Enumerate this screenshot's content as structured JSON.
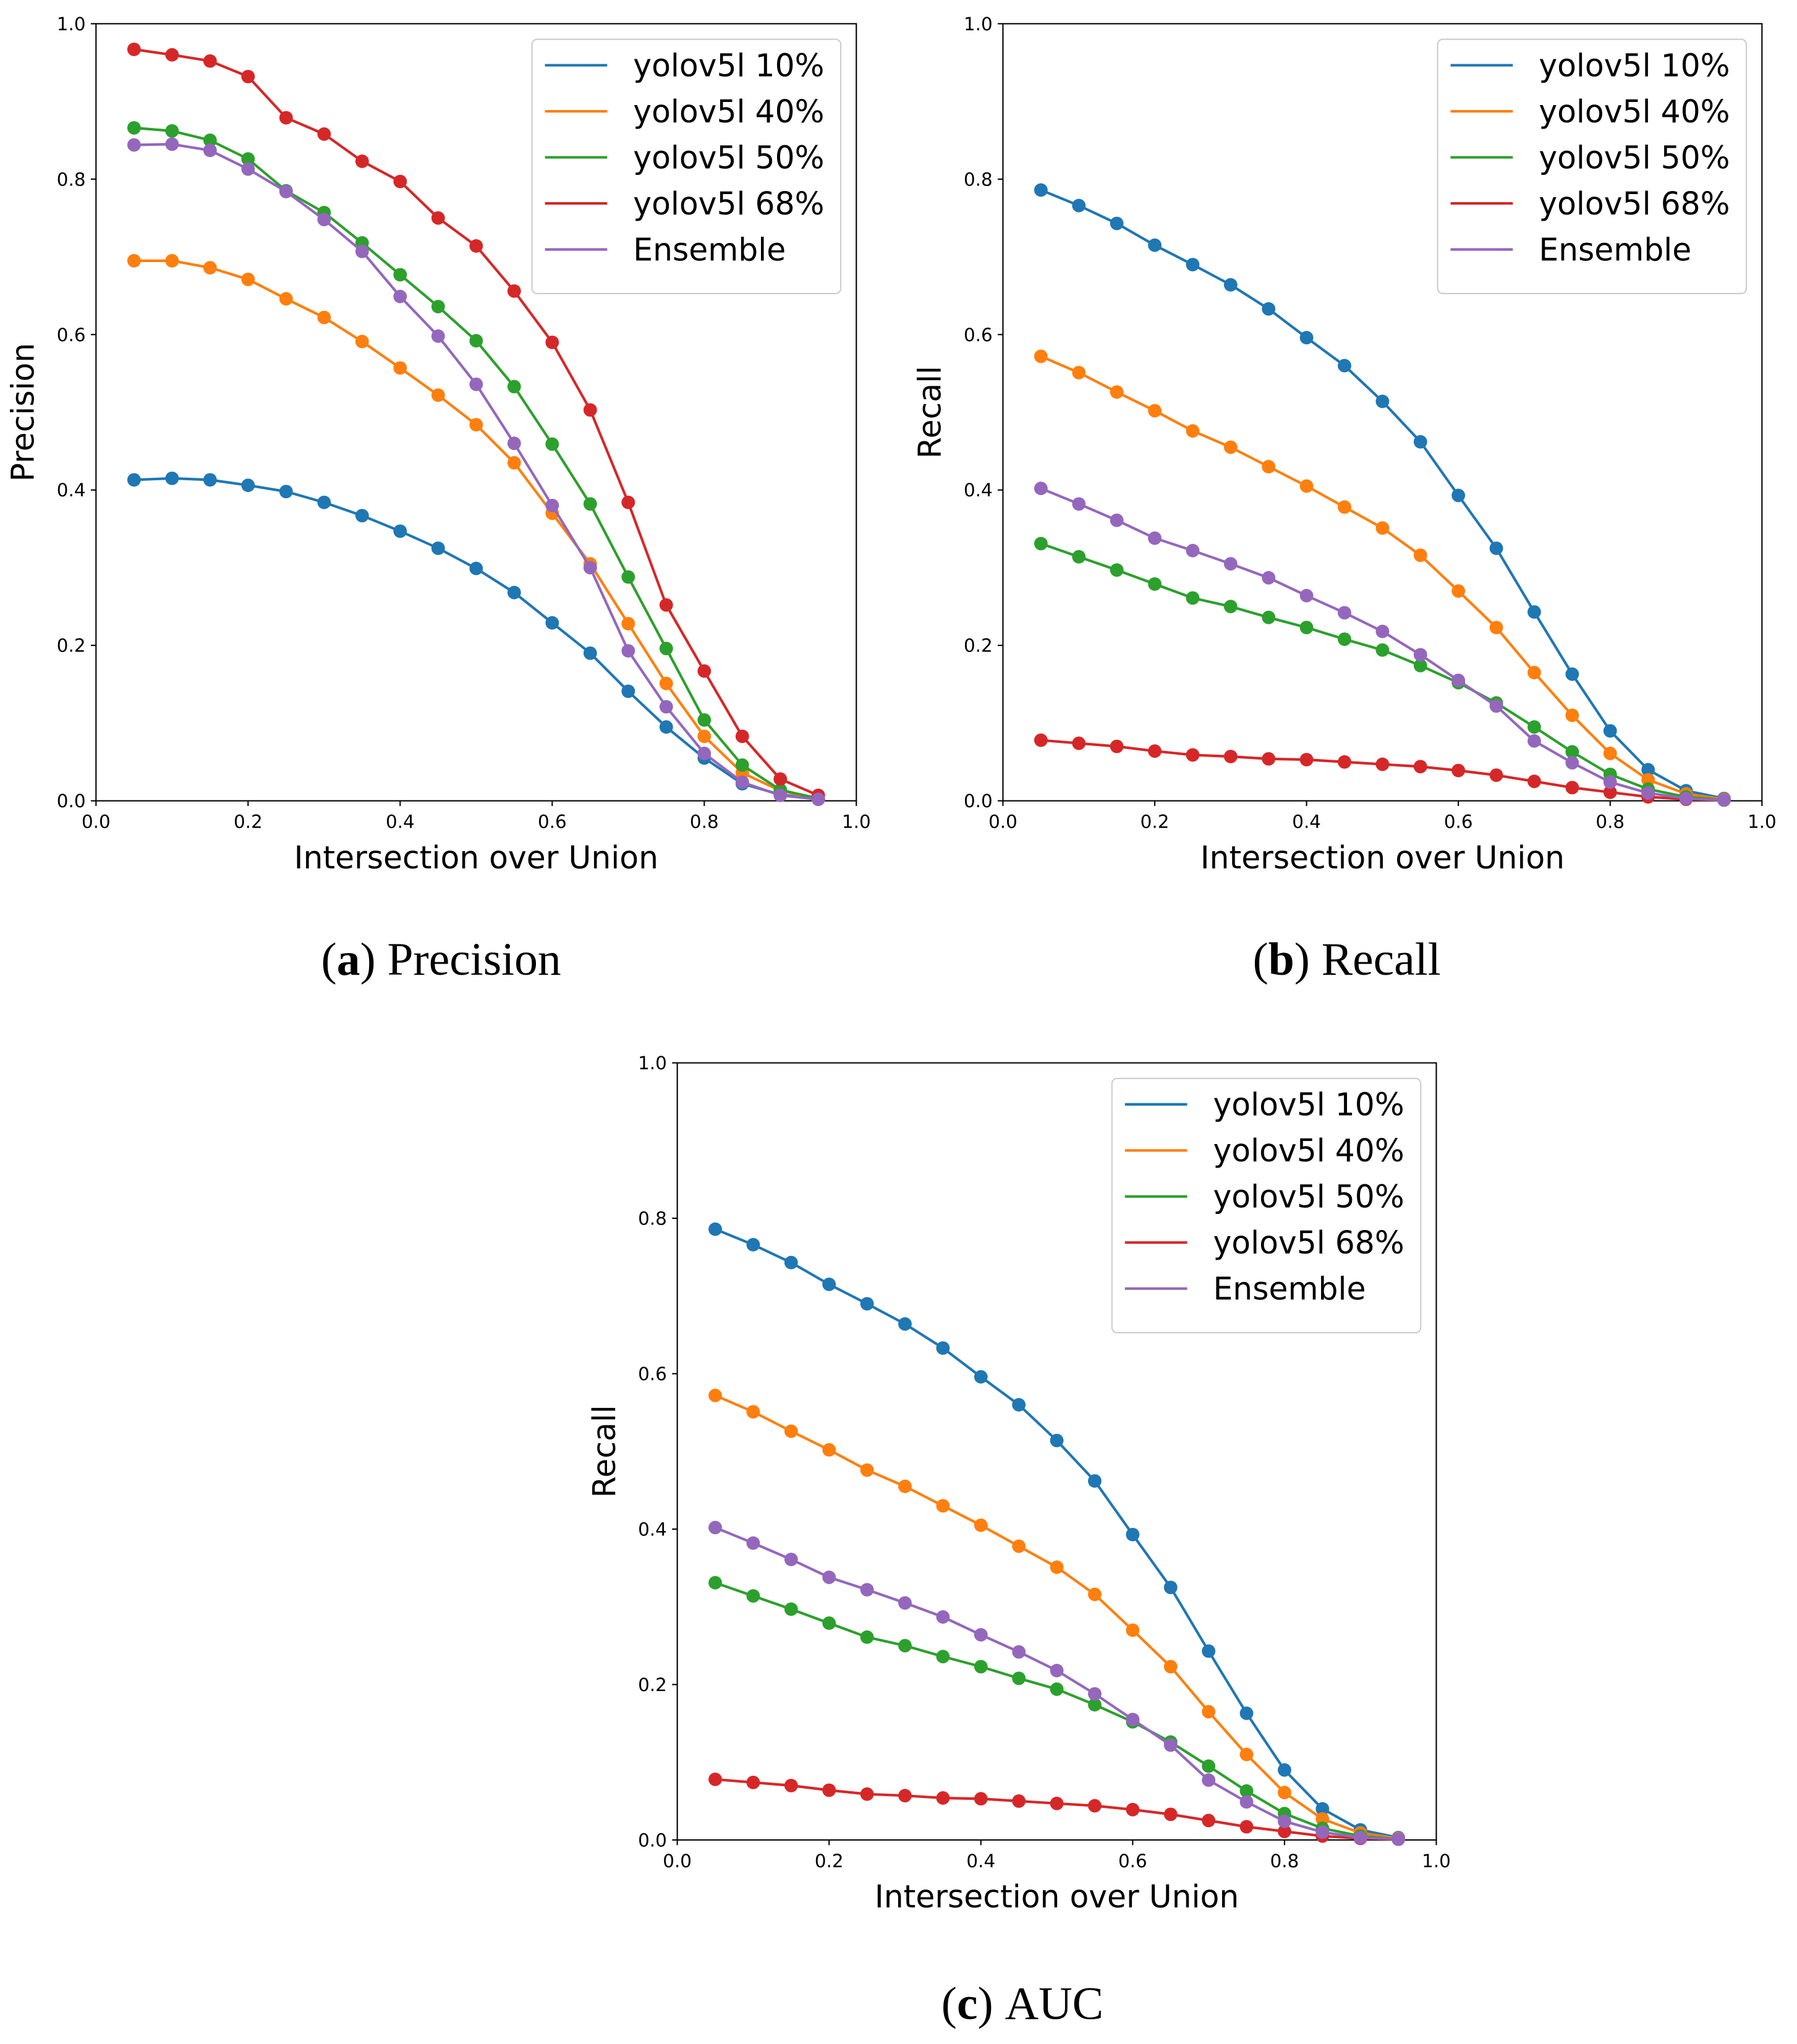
{
  "figure": {
    "captions": [
      {
        "letter": "a",
        "text": "Precision"
      },
      {
        "letter": "b",
        "text": "Recall"
      },
      {
        "letter": "c",
        "text": "AUC"
      }
    ]
  },
  "chart_data": [
    {
      "type": "line",
      "title": "",
      "xlabel": "Intersection over Union",
      "ylabel": "Precision",
      "xlim": [
        0.0,
        1.0
      ],
      "ylim": [
        0.0,
        1.0
      ],
      "xticks": [
        "0.0",
        "0.2",
        "0.4",
        "0.6",
        "0.8",
        "1.0"
      ],
      "yticks": [
        "0.0",
        "0.2",
        "0.4",
        "0.6",
        "0.8",
        "1.0"
      ],
      "grid": false,
      "legend_position": "top-right",
      "x": [
        0.05,
        0.1,
        0.15,
        0.2,
        0.25,
        0.3,
        0.35,
        0.4,
        0.45,
        0.5,
        0.55,
        0.6,
        0.65,
        0.7,
        0.75,
        0.8,
        0.85,
        0.9,
        0.95
      ],
      "series": [
        {
          "name": "yolov5l 10%",
          "color": "#1f77b4",
          "values": [
            0.413,
            0.415,
            0.413,
            0.406,
            0.398,
            0.384,
            0.367,
            0.347,
            0.325,
            0.299,
            0.268,
            0.229,
            0.19,
            0.141,
            0.095,
            0.055,
            0.022,
            0.008,
            0.002
          ]
        },
        {
          "name": "yolov5l 40%",
          "color": "#ff7f0e",
          "values": [
            0.695,
            0.695,
            0.686,
            0.671,
            0.646,
            0.622,
            0.591,
            0.557,
            0.522,
            0.484,
            0.435,
            0.37,
            0.305,
            0.228,
            0.151,
            0.083,
            0.036,
            0.013,
            0.002
          ]
        },
        {
          "name": "yolov5l 50%",
          "color": "#2ca02c",
          "values": [
            0.866,
            0.862,
            0.85,
            0.826,
            0.785,
            0.757,
            0.718,
            0.677,
            0.636,
            0.592,
            0.533,
            0.459,
            0.382,
            0.288,
            0.196,
            0.104,
            0.046,
            0.014,
            0.003
          ]
        },
        {
          "name": "yolov5l 68%",
          "color": "#d62728",
          "values": [
            0.967,
            0.96,
            0.952,
            0.932,
            0.879,
            0.858,
            0.823,
            0.797,
            0.75,
            0.714,
            0.656,
            0.59,
            0.503,
            0.384,
            0.252,
            0.167,
            0.083,
            0.028,
            0.007
          ]
        },
        {
          "name": "Ensemble",
          "color": "#9467bd",
          "values": [
            0.844,
            0.845,
            0.837,
            0.813,
            0.784,
            0.748,
            0.707,
            0.649,
            0.598,
            0.536,
            0.46,
            0.38,
            0.3,
            0.193,
            0.121,
            0.061,
            0.024,
            0.007,
            0.002
          ]
        }
      ]
    },
    {
      "type": "line",
      "title": "",
      "xlabel": "Intersection over Union",
      "ylabel": "Recall",
      "xlim": [
        0.0,
        1.0
      ],
      "ylim": [
        0.0,
        1.0
      ],
      "xticks": [
        "0.0",
        "0.2",
        "0.4",
        "0.6",
        "0.8",
        "1.0"
      ],
      "yticks": [
        "0.0",
        "0.2",
        "0.4",
        "0.6",
        "0.8",
        "1.0"
      ],
      "grid": false,
      "legend_position": "top-right",
      "x": [
        0.05,
        0.1,
        0.15,
        0.2,
        0.25,
        0.3,
        0.35,
        0.4,
        0.45,
        0.5,
        0.55,
        0.6,
        0.65,
        0.7,
        0.75,
        0.8,
        0.85,
        0.9,
        0.95
      ],
      "series": [
        {
          "name": "yolov5l 10%",
          "color": "#1f77b4",
          "values": [
            0.786,
            0.766,
            0.743,
            0.715,
            0.69,
            0.664,
            0.633,
            0.596,
            0.56,
            0.514,
            0.462,
            0.393,
            0.325,
            0.243,
            0.163,
            0.09,
            0.04,
            0.013,
            0.003
          ]
        },
        {
          "name": "yolov5l 40%",
          "color": "#ff7f0e",
          "values": [
            0.572,
            0.551,
            0.526,
            0.502,
            0.476,
            0.455,
            0.43,
            0.405,
            0.378,
            0.351,
            0.316,
            0.27,
            0.223,
            0.165,
            0.11,
            0.061,
            0.027,
            0.009,
            0.002
          ]
        },
        {
          "name": "yolov5l 50%",
          "color": "#2ca02c",
          "values": [
            0.331,
            0.314,
            0.297,
            0.279,
            0.261,
            0.25,
            0.236,
            0.223,
            0.208,
            0.194,
            0.174,
            0.152,
            0.126,
            0.095,
            0.063,
            0.034,
            0.015,
            0.005,
            0.001
          ]
        },
        {
          "name": "yolov5l 68%",
          "color": "#d62728",
          "values": [
            0.078,
            0.074,
            0.07,
            0.064,
            0.059,
            0.057,
            0.054,
            0.053,
            0.05,
            0.047,
            0.044,
            0.039,
            0.033,
            0.025,
            0.017,
            0.011,
            0.005,
            0.002,
            0.001
          ]
        },
        {
          "name": "Ensemble",
          "color": "#9467bd",
          "values": [
            0.402,
            0.382,
            0.361,
            0.338,
            0.322,
            0.305,
            0.287,
            0.264,
            0.242,
            0.218,
            0.188,
            0.155,
            0.122,
            0.077,
            0.049,
            0.024,
            0.01,
            0.003,
            0.001
          ]
        }
      ]
    },
    {
      "type": "line",
      "title": "",
      "xlabel": "Intersection over Union",
      "ylabel": "Recall",
      "xlim": [
        0.0,
        1.0
      ],
      "ylim": [
        0.0,
        1.0
      ],
      "xticks": [
        "0.0",
        "0.2",
        "0.4",
        "0.6",
        "0.8",
        "1.0"
      ],
      "yticks": [
        "0.0",
        "0.2",
        "0.4",
        "0.6",
        "0.8",
        "1.0"
      ],
      "grid": false,
      "legend_position": "top-right",
      "x": [
        0.05,
        0.1,
        0.15,
        0.2,
        0.25,
        0.3,
        0.35,
        0.4,
        0.45,
        0.5,
        0.55,
        0.6,
        0.65,
        0.7,
        0.75,
        0.8,
        0.85,
        0.9,
        0.95
      ],
      "series": [
        {
          "name": "yolov5l 10%",
          "color": "#1f77b4",
          "values": [
            0.786,
            0.766,
            0.743,
            0.715,
            0.69,
            0.664,
            0.633,
            0.596,
            0.56,
            0.514,
            0.462,
            0.393,
            0.325,
            0.243,
            0.163,
            0.09,
            0.04,
            0.013,
            0.003
          ]
        },
        {
          "name": "yolov5l 40%",
          "color": "#ff7f0e",
          "values": [
            0.572,
            0.551,
            0.526,
            0.502,
            0.476,
            0.455,
            0.43,
            0.405,
            0.378,
            0.351,
            0.316,
            0.27,
            0.223,
            0.165,
            0.11,
            0.061,
            0.027,
            0.009,
            0.002
          ]
        },
        {
          "name": "yolov5l 50%",
          "color": "#2ca02c",
          "values": [
            0.331,
            0.314,
            0.297,
            0.279,
            0.261,
            0.25,
            0.236,
            0.223,
            0.208,
            0.194,
            0.174,
            0.152,
            0.126,
            0.095,
            0.063,
            0.034,
            0.015,
            0.005,
            0.001
          ]
        },
        {
          "name": "yolov5l 68%",
          "color": "#d62728",
          "values": [
            0.078,
            0.074,
            0.07,
            0.064,
            0.059,
            0.057,
            0.054,
            0.053,
            0.05,
            0.047,
            0.044,
            0.039,
            0.033,
            0.025,
            0.017,
            0.011,
            0.005,
            0.002,
            0.001
          ]
        },
        {
          "name": "Ensemble",
          "color": "#9467bd",
          "values": [
            0.402,
            0.382,
            0.361,
            0.338,
            0.322,
            0.305,
            0.287,
            0.264,
            0.242,
            0.218,
            0.188,
            0.155,
            0.122,
            0.077,
            0.049,
            0.024,
            0.01,
            0.003,
            0.001
          ]
        }
      ]
    }
  ]
}
